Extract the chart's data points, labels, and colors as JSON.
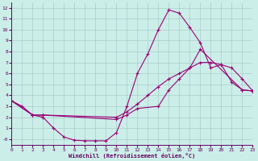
{
  "xlabel": "Windchill (Refroidissement éolien,°C)",
  "bg_color": "#cceee8",
  "grid_color": "#aacccc",
  "line_color": "#990077",
  "xlim": [
    0,
    23
  ],
  "ylim": [
    -0.5,
    12.5
  ],
  "xticks": [
    0,
    1,
    2,
    3,
    4,
    5,
    6,
    7,
    8,
    9,
    10,
    11,
    12,
    13,
    14,
    15,
    16,
    17,
    18,
    19,
    20,
    21,
    22,
    23
  ],
  "yticks": [
    0,
    1,
    2,
    3,
    4,
    5,
    6,
    7,
    8,
    9,
    10,
    11,
    12
  ],
  "ytick_labels": [
    "-0",
    "1",
    "2",
    "3",
    "4",
    "5",
    "6",
    "7",
    "8",
    "9",
    "10",
    "11",
    "12"
  ],
  "series1_x": [
    0,
    1,
    2,
    3,
    4,
    5,
    6,
    7,
    8,
    9,
    10,
    11,
    12,
    13,
    14,
    15,
    16,
    17,
    18,
    19,
    20,
    21,
    22,
    23
  ],
  "series1_y": [
    3.5,
    3.0,
    2.2,
    2.0,
    1.0,
    0.2,
    -0.1,
    -0.15,
    -0.15,
    -0.15,
    0.6,
    3.0,
    6.0,
    7.8,
    10.0,
    11.8,
    11.5,
    10.2,
    8.8,
    6.5,
    6.8,
    5.2,
    4.5,
    4.4
  ],
  "series2_x": [
    0,
    2,
    3,
    10,
    11,
    12,
    13,
    14,
    15,
    16,
    17,
    18,
    19,
    20,
    21,
    22,
    23
  ],
  "series2_y": [
    3.5,
    2.2,
    2.2,
    2.0,
    2.5,
    3.2,
    4.0,
    4.8,
    5.5,
    6.0,
    6.5,
    7.0,
    7.0,
    6.8,
    6.5,
    5.5,
    4.4
  ],
  "series3_x": [
    0,
    2,
    3,
    10,
    11,
    12,
    14,
    15,
    16,
    17,
    18,
    22,
    23
  ],
  "series3_y": [
    3.5,
    2.2,
    2.2,
    1.8,
    2.2,
    2.8,
    3.0,
    4.5,
    5.5,
    6.5,
    8.2,
    4.5,
    4.4
  ]
}
